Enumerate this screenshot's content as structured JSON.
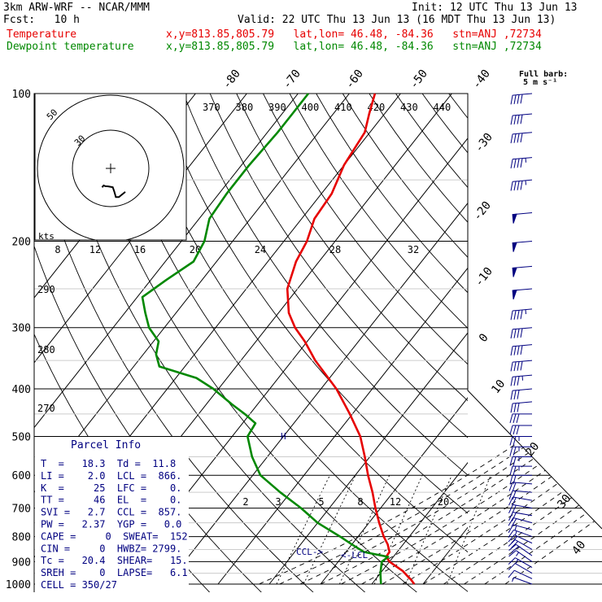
{
  "header": {
    "model": "3km ARW-WRF -- NCAR/MMM",
    "init": "Init: 12 UTC Thu 13 Jun 13",
    "fcst": "Fcst:   10 h",
    "valid": "Valid: 22 UTC Thu 13 Jun 13 (16 MDT Thu 13 Jun 13)",
    "temp_label": "Temperature",
    "dew_label": "Dewpoint temperature",
    "temp_info": "x,y=813.85,805.79   lat,lon= 46.48, -84.36   stn=ANJ ,72734",
    "dew_info": "x,y=813.85,805.79   lat,lon= 46.48, -84.36   stn=ANJ ,72734",
    "barb_label_1": "Full barb:",
    "barb_label_2": "5 m s⁻¹"
  },
  "parcel": {
    "title": "Parcel Info",
    "rows": [
      "T  =   18.3  Td =  11.8",
      "LI =    2.0  LCL =  866.",
      "K  =     25  LFC =    0.",
      "TT =     46  EL  =    0.",
      "SVI =   2.7  CCL =  857.",
      "PW =   2.37  YGP =   0.0",
      "CAPE =     0  SWEAT=  152",
      "CIN =     0  HWBZ= 2799.",
      "Tc =   20.4  SHEAR=   15.",
      "SREH =    0  LAPSE=   6.1",
      "CELL = 350/27"
    ]
  },
  "hodograph": {
    "units_label": "kts",
    "ring_labels": [
      "50",
      "30"
    ],
    "speed_ticks": [
      "8",
      "12",
      "16",
      "20",
      "24",
      "28",
      "32"
    ]
  },
  "markers": {
    "ccl": "CCL->",
    "lcl": "<-LCL",
    "h": "H"
  },
  "colors": {
    "temperature": "#e60000",
    "dewpoint": "#008800",
    "isobar": "#000000",
    "barb": "#000080"
  },
  "chart_data": {
    "type": "line",
    "title": "",
    "y_axis": "pressure (hPa), log scale, 100 at top, 1000 at bottom",
    "pressure_levels": [
      100,
      200,
      300,
      400,
      500,
      600,
      700,
      800,
      900,
      1000
    ],
    "isotherm_labels": [
      "-80",
      "-70",
      "-60",
      "-50",
      "-40",
      "-30",
      "-20",
      "-10",
      "0",
      "10",
      "20",
      "30",
      "40"
    ],
    "theta_labels": [
      "370",
      "380",
      "390",
      "400",
      "410",
      "420",
      "430",
      "440"
    ],
    "mixing_ratio_labels": [
      "2",
      "3",
      "5",
      "8",
      "12",
      "20"
    ],
    "thetae_labels": [
      "290",
      "280",
      "270"
    ],
    "series": [
      {
        "name": "Temperature",
        "color": "#e60000",
        "p": [
          1000,
          980,
          960,
          940,
          920,
          900,
          880,
          860,
          830,
          800,
          750,
          700,
          650,
          600,
          550,
          500,
          450,
          400,
          350,
          320,
          300,
          280,
          250,
          220,
          200,
          180,
          160,
          140,
          120,
          110,
          100
        ],
        "t_c": [
          18.3,
          17.0,
          15.5,
          14.0,
          12.0,
          10.0,
          8.6,
          8.5,
          7.0,
          5.0,
          2.0,
          -1.0,
          -4.0,
          -7.5,
          -11.0,
          -15.0,
          -20.5,
          -27.0,
          -35.5,
          -40.5,
          -44.5,
          -48.0,
          -52.0,
          -54.5,
          -55.5,
          -57.5,
          -58.0,
          -60.0,
          -61.0,
          -63.0,
          -65.0
        ]
      },
      {
        "name": "Dewpoint temperature",
        "color": "#008800",
        "p": [
          1000,
          950,
          900,
          880,
          860,
          830,
          800,
          750,
          700,
          650,
          600,
          550,
          500,
          470,
          450,
          430,
          400,
          380,
          360,
          340,
          320,
          300,
          280,
          260,
          240,
          220,
          200,
          180,
          160,
          140,
          120,
          110,
          100
        ],
        "t_c": [
          11.8,
          10.0,
          8.5,
          9.0,
          3.5,
          0.0,
          -3.5,
          -10.0,
          -15.5,
          -22.0,
          -28.5,
          -33.0,
          -37.0,
          -37.5,
          -41.0,
          -45.0,
          -51.0,
          -56.0,
          -65.0,
          -67.5,
          -69.0,
          -73.0,
          -76.0,
          -79.0,
          -77.0,
          -74.5,
          -75.5,
          -78.0,
          -78.5,
          -78.5,
          -78.0,
          -78.0,
          -78.0
        ]
      }
    ],
    "hodograph_uv_kts": [
      [
        -5.6,
        -12.4
      ],
      [
        -4.6,
        -11.2
      ],
      [
        -3.4,
        -11.7
      ],
      [
        -1.6,
        -11.8
      ],
      [
        1.4,
        -12.3
      ],
      [
        2.4,
        -15.2
      ],
      [
        3.4,
        -18.8
      ],
      [
        5.4,
        -18.8
      ],
      [
        9.6,
        -15.4
      ]
    ],
    "wind_barbs": {
      "p": [
        1000,
        975,
        950,
        925,
        900,
        875,
        850,
        825,
        800,
        775,
        750,
        725,
        700,
        675,
        650,
        625,
        600,
        575,
        550,
        525,
        500,
        475,
        450,
        425,
        400,
        375,
        350,
        325,
        300,
        275,
        250,
        225,
        200,
        175,
        150,
        135,
        120,
        110,
        100
      ],
      "dir_deg": [
        290,
        295,
        300,
        300,
        305,
        305,
        300,
        295,
        290,
        285,
        285,
        280,
        280,
        280,
        275,
        275,
        270,
        270,
        270,
        270,
        270,
        270,
        270,
        265,
        265,
        265,
        265,
        265,
        265,
        265,
        265,
        265,
        265,
        265,
        265,
        265,
        265,
        265,
        265
      ],
      "speed_ms": [
        4,
        5,
        6,
        8,
        9,
        10,
        10,
        10,
        9,
        9,
        10,
        10,
        11,
        11,
        12,
        12,
        12,
        13,
        13,
        13,
        14,
        15,
        15,
        16,
        17,
        18,
        20,
        21,
        22,
        24,
        25,
        26,
        26,
        25,
        24,
        23,
        22,
        21,
        20
      ]
    }
  }
}
